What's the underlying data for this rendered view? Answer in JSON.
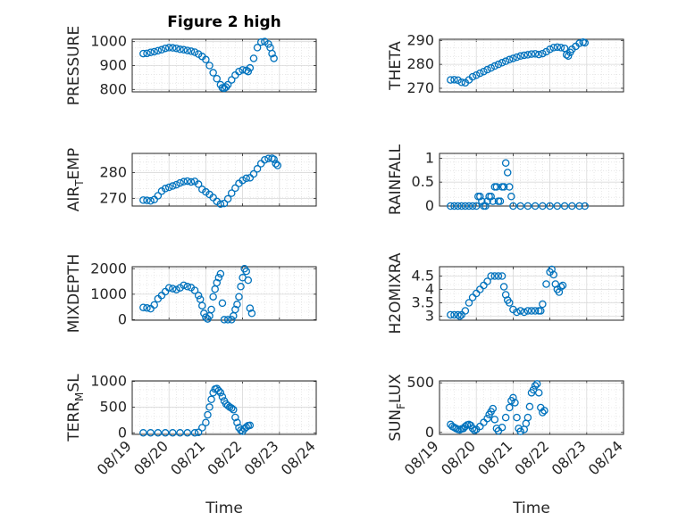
{
  "title": "Figure 2 high",
  "chart_data": [
    {
      "type": "scatter",
      "ylabel": "PRESSURE",
      "ylim": [
        790,
        1010
      ],
      "yticks": [
        800,
        900,
        1000
      ],
      "ytick_labels": [
        "800",
        "900",
        "1000"
      ],
      "xlim": [
        0,
        5
      ],
      "points": [
        [
          0.3,
          950
        ],
        [
          0.4,
          951
        ],
        [
          0.5,
          955
        ],
        [
          0.6,
          958
        ],
        [
          0.7,
          962
        ],
        [
          0.8,
          966
        ],
        [
          0.9,
          972
        ],
        [
          1.0,
          975
        ],
        [
          1.1,
          974
        ],
        [
          1.2,
          972
        ],
        [
          1.3,
          968
        ],
        [
          1.4,
          966
        ],
        [
          1.5,
          963
        ],
        [
          1.6,
          960
        ],
        [
          1.7,
          956
        ],
        [
          1.8,
          948
        ],
        [
          1.9,
          938
        ],
        [
          2.0,
          925
        ],
        [
          2.1,
          900
        ],
        [
          2.2,
          870
        ],
        [
          2.3,
          845
        ],
        [
          2.4,
          820
        ],
        [
          2.45,
          807
        ],
        [
          2.5,
          805
        ],
        [
          2.55,
          810
        ],
        [
          2.6,
          820
        ],
        [
          2.7,
          840
        ],
        [
          2.8,
          860
        ],
        [
          2.9,
          875
        ],
        [
          3.0,
          882
        ],
        [
          3.1,
          880
        ],
        [
          3.15,
          875
        ],
        [
          3.2,
          890
        ],
        [
          3.3,
          930
        ],
        [
          3.4,
          975
        ],
        [
          3.5,
          998
        ],
        [
          3.6,
          1000
        ],
        [
          3.7,
          990
        ],
        [
          3.75,
          975
        ],
        [
          3.8,
          950
        ],
        [
          3.85,
          930
        ]
      ],
      "grid": true
    },
    {
      "type": "scatter",
      "ylabel": "THETA",
      "ylim": [
        268.5,
        290.5
      ],
      "yticks": [
        270,
        280,
        290
      ],
      "ytick_labels": [
        "270",
        "280",
        "290"
      ],
      "xlim": [
        0,
        5
      ],
      "points": [
        [
          0.3,
          273.5
        ],
        [
          0.4,
          273.6
        ],
        [
          0.5,
          273.4
        ],
        [
          0.6,
          272.5
        ],
        [
          0.7,
          272.3
        ],
        [
          0.8,
          273.5
        ],
        [
          0.9,
          274.8
        ],
        [
          1.0,
          275.5
        ],
        [
          1.1,
          276.3
        ],
        [
          1.2,
          277.0
        ],
        [
          1.3,
          277.8
        ],
        [
          1.4,
          278.5
        ],
        [
          1.5,
          279.3
        ],
        [
          1.6,
          280.0
        ],
        [
          1.7,
          280.7
        ],
        [
          1.8,
          281.3
        ],
        [
          1.9,
          282.0
        ],
        [
          2.0,
          282.5
        ],
        [
          2.1,
          283.0
        ],
        [
          2.2,
          283.5
        ],
        [
          2.3,
          283.8
        ],
        [
          2.4,
          284.0
        ],
        [
          2.5,
          284.3
        ],
        [
          2.6,
          284.4
        ],
        [
          2.7,
          284.1
        ],
        [
          2.8,
          284.5
        ],
        [
          2.9,
          285.3
        ],
        [
          3.0,
          286.3
        ],
        [
          3.1,
          287.0
        ],
        [
          3.2,
          287.2
        ],
        [
          3.3,
          287.0
        ],
        [
          3.4,
          286.7
        ],
        [
          3.45,
          284.0
        ],
        [
          3.5,
          283.5
        ],
        [
          3.55,
          285.0
        ],
        [
          3.6,
          286.3
        ],
        [
          3.7,
          287.5
        ],
        [
          3.8,
          288.8
        ],
        [
          3.9,
          289.3
        ],
        [
          3.95,
          289.0
        ]
      ],
      "grid": true
    },
    {
      "type": "scatter",
      "ylabel": "AIR_TEMP",
      "ylim": [
        267,
        287.5
      ],
      "yticks": [
        270,
        280
      ],
      "ytick_labels": [
        "270",
        "280"
      ],
      "xlim": [
        0,
        5
      ],
      "points": [
        [
          0.3,
          269.3
        ],
        [
          0.4,
          269.2
        ],
        [
          0.5,
          269.0
        ],
        [
          0.6,
          269.5
        ],
        [
          0.7,
          271.0
        ],
        [
          0.8,
          272.8
        ],
        [
          0.9,
          273.8
        ],
        [
          1.0,
          274.3
        ],
        [
          1.1,
          274.8
        ],
        [
          1.2,
          275.3
        ],
        [
          1.3,
          276.0
        ],
        [
          1.4,
          276.5
        ],
        [
          1.5,
          276.7
        ],
        [
          1.6,
          276.4
        ],
        [
          1.7,
          276.6
        ],
        [
          1.8,
          275.5
        ],
        [
          1.9,
          273.5
        ],
        [
          2.0,
          272.5
        ],
        [
          2.1,
          271.5
        ],
        [
          2.2,
          270.3
        ],
        [
          2.3,
          268.8
        ],
        [
          2.4,
          267.8
        ],
        [
          2.5,
          268.0
        ],
        [
          2.6,
          269.8
        ],
        [
          2.7,
          272.0
        ],
        [
          2.8,
          274.0
        ],
        [
          2.9,
          275.8
        ],
        [
          3.0,
          277.0
        ],
        [
          3.1,
          277.8
        ],
        [
          3.2,
          278.0
        ],
        [
          3.3,
          279.5
        ],
        [
          3.4,
          281.5
        ],
        [
          3.5,
          283.5
        ],
        [
          3.6,
          285.0
        ],
        [
          3.7,
          285.5
        ],
        [
          3.8,
          285.6
        ],
        [
          3.85,
          285.2
        ],
        [
          3.9,
          283.5
        ],
        [
          3.95,
          282.8
        ]
      ],
      "grid": true
    },
    {
      "type": "scatter",
      "ylabel": "RAINFALL",
      "ylim": [
        0,
        1.1
      ],
      "yticks": [
        0,
        0.5,
        1
      ],
      "ytick_labels": [
        "0",
        "0.5",
        "1"
      ],
      "xlim": [
        0,
        5
      ],
      "points": [
        [
          0.3,
          0
        ],
        [
          0.4,
          0
        ],
        [
          0.5,
          0
        ],
        [
          0.6,
          0
        ],
        [
          0.7,
          0
        ],
        [
          0.8,
          0
        ],
        [
          0.9,
          0
        ],
        [
          1.0,
          0
        ],
        [
          1.05,
          0.2
        ],
        [
          1.1,
          0.2
        ],
        [
          1.15,
          0.1
        ],
        [
          1.2,
          0
        ],
        [
          1.25,
          0
        ],
        [
          1.3,
          0.1
        ],
        [
          1.35,
          0.2
        ],
        [
          1.4,
          0.2
        ],
        [
          1.45,
          0.1
        ],
        [
          1.5,
          0.4
        ],
        [
          1.55,
          0.4
        ],
        [
          1.6,
          0.1
        ],
        [
          1.65,
          0.1
        ],
        [
          1.7,
          0.4
        ],
        [
          1.75,
          0.4
        ],
        [
          1.8,
          0.9
        ],
        [
          1.85,
          0.7
        ],
        [
          1.9,
          0.4
        ],
        [
          1.95,
          0.2
        ],
        [
          2.0,
          0
        ],
        [
          2.2,
          0
        ],
        [
          2.4,
          0
        ],
        [
          2.6,
          0
        ],
        [
          2.8,
          0
        ],
        [
          3.0,
          0
        ],
        [
          3.2,
          0
        ],
        [
          3.4,
          0
        ],
        [
          3.6,
          0
        ],
        [
          3.8,
          0
        ],
        [
          3.95,
          0
        ]
      ],
      "grid": true
    },
    {
      "type": "scatter",
      "ylabel": "MIXDEPTH",
      "ylim": [
        -20,
        2080
      ],
      "yticks": [
        0,
        1000,
        2000
      ],
      "ytick_labels": [
        "0",
        "1000",
        "2000"
      ],
      "xlim": [
        0,
        5
      ],
      "points": [
        [
          0.3,
          480
        ],
        [
          0.4,
          460
        ],
        [
          0.5,
          430
        ],
        [
          0.6,
          580
        ],
        [
          0.7,
          820
        ],
        [
          0.8,
          950
        ],
        [
          0.9,
          1100
        ],
        [
          1.0,
          1250
        ],
        [
          1.1,
          1220
        ],
        [
          1.2,
          1180
        ],
        [
          1.3,
          1250
        ],
        [
          1.4,
          1350
        ],
        [
          1.5,
          1300
        ],
        [
          1.6,
          1260
        ],
        [
          1.7,
          1150
        ],
        [
          1.8,
          950
        ],
        [
          1.85,
          800
        ],
        [
          1.9,
          550
        ],
        [
          1.95,
          250
        ],
        [
          2.0,
          100
        ],
        [
          2.05,
          30
        ],
        [
          2.1,
          150
        ],
        [
          2.15,
          400
        ],
        [
          2.2,
          900
        ],
        [
          2.25,
          1200
        ],
        [
          2.3,
          1450
        ],
        [
          2.35,
          1650
        ],
        [
          2.4,
          1800
        ],
        [
          2.45,
          650
        ],
        [
          2.5,
          0
        ],
        [
          2.6,
          0
        ],
        [
          2.7,
          0
        ],
        [
          2.75,
          150
        ],
        [
          2.8,
          400
        ],
        [
          2.85,
          600
        ],
        [
          2.9,
          900
        ],
        [
          2.95,
          1300
        ],
        [
          3.0,
          1650
        ],
        [
          3.05,
          2000
        ],
        [
          3.1,
          1900
        ],
        [
          3.15,
          1550
        ],
        [
          3.2,
          450
        ],
        [
          3.25,
          250
        ]
      ],
      "grid": true
    },
    {
      "type": "scatter",
      "ylabel": "H2OMIXRA",
      "ylim": [
        2.85,
        4.85
      ],
      "yticks": [
        3,
        3.5,
        4,
        4.5
      ],
      "ytick_labels": [
        "3",
        "3.5",
        "4",
        "4.5"
      ],
      "xlim": [
        0,
        5
      ],
      "points": [
        [
          0.3,
          3.05
        ],
        [
          0.4,
          3.05
        ],
        [
          0.5,
          3.05
        ],
        [
          0.55,
          3.0
        ],
        [
          0.6,
          3.05
        ],
        [
          0.7,
          3.2
        ],
        [
          0.8,
          3.5
        ],
        [
          0.9,
          3.7
        ],
        [
          1.0,
          3.85
        ],
        [
          1.1,
          4.0
        ],
        [
          1.2,
          4.15
        ],
        [
          1.3,
          4.3
        ],
        [
          1.4,
          4.5
        ],
        [
          1.5,
          4.5
        ],
        [
          1.6,
          4.5
        ],
        [
          1.7,
          4.5
        ],
        [
          1.75,
          4.1
        ],
        [
          1.8,
          3.8
        ],
        [
          1.85,
          3.6
        ],
        [
          1.9,
          3.5
        ],
        [
          2.0,
          3.25
        ],
        [
          2.1,
          3.15
        ],
        [
          2.2,
          3.2
        ],
        [
          2.3,
          3.15
        ],
        [
          2.4,
          3.2
        ],
        [
          2.5,
          3.2
        ],
        [
          2.6,
          3.2
        ],
        [
          2.7,
          3.2
        ],
        [
          2.75,
          3.2
        ],
        [
          2.8,
          3.45
        ],
        [
          2.9,
          4.2
        ],
        [
          3.0,
          4.65
        ],
        [
          3.05,
          4.75
        ],
        [
          3.1,
          4.55
        ],
        [
          3.15,
          4.2
        ],
        [
          3.2,
          4.0
        ],
        [
          3.25,
          3.9
        ],
        [
          3.3,
          4.1
        ],
        [
          3.35,
          4.15
        ]
      ],
      "grid": true
    },
    {
      "type": "scatter",
      "ylabel": "TERR_MSL",
      "ylim": [
        -30,
        1010
      ],
      "yticks": [
        0,
        500,
        1000
      ],
      "ytick_labels": [
        "0",
        "500",
        "1000"
      ],
      "xlim": [
        0,
        5
      ],
      "points": [
        [
          0.3,
          0
        ],
        [
          0.5,
          0
        ],
        [
          0.7,
          0
        ],
        [
          0.9,
          0
        ],
        [
          1.1,
          0
        ],
        [
          1.3,
          0
        ],
        [
          1.5,
          0
        ],
        [
          1.7,
          0
        ],
        [
          1.8,
          10
        ],
        [
          1.9,
          100
        ],
        [
          2.0,
          200
        ],
        [
          2.05,
          350
        ],
        [
          2.1,
          500
        ],
        [
          2.15,
          650
        ],
        [
          2.2,
          780
        ],
        [
          2.25,
          850
        ],
        [
          2.3,
          860
        ],
        [
          2.35,
          820
        ],
        [
          2.4,
          780
        ],
        [
          2.45,
          700
        ],
        [
          2.5,
          620
        ],
        [
          2.55,
          560
        ],
        [
          2.6,
          530
        ],
        [
          2.65,
          500
        ],
        [
          2.7,
          480
        ],
        [
          2.75,
          450
        ],
        [
          2.8,
          300
        ],
        [
          2.85,
          200
        ],
        [
          2.9,
          100
        ],
        [
          2.95,
          50
        ],
        [
          3.0,
          30
        ],
        [
          3.05,
          80
        ],
        [
          3.1,
          110
        ],
        [
          3.15,
          140
        ],
        [
          3.2,
          145
        ]
      ],
      "grid": true
    },
    {
      "type": "scatter",
      "ylabel": "SUN_FLUX",
      "ylim": [
        -20,
        520
      ],
      "yticks": [
        0,
        500
      ],
      "ytick_labels": [
        "0",
        "500"
      ],
      "xlim": [
        0,
        5
      ],
      "points": [
        [
          0.3,
          80
        ],
        [
          0.35,
          60
        ],
        [
          0.4,
          50
        ],
        [
          0.45,
          40
        ],
        [
          0.5,
          30
        ],
        [
          0.55,
          25
        ],
        [
          0.6,
          35
        ],
        [
          0.65,
          40
        ],
        [
          0.7,
          60
        ],
        [
          0.75,
          75
        ],
        [
          0.8,
          80
        ],
        [
          0.85,
          70
        ],
        [
          0.9,
          40
        ],
        [
          0.95,
          20
        ],
        [
          1.0,
          30
        ],
        [
          1.1,
          60
        ],
        [
          1.2,
          100
        ],
        [
          1.3,
          140
        ],
        [
          1.35,
          180
        ],
        [
          1.4,
          210
        ],
        [
          1.45,
          240
        ],
        [
          1.5,
          130
        ],
        [
          1.55,
          40
        ],
        [
          1.6,
          15
        ],
        [
          1.7,
          50
        ],
        [
          1.8,
          150
        ],
        [
          1.9,
          250
        ],
        [
          1.95,
          320
        ],
        [
          2.0,
          350
        ],
        [
          2.05,
          300
        ],
        [
          2.1,
          150
        ],
        [
          2.15,
          40
        ],
        [
          2.2,
          10
        ],
        [
          2.3,
          30
        ],
        [
          2.35,
          90
        ],
        [
          2.4,
          150
        ],
        [
          2.45,
          260
        ],
        [
          2.5,
          400
        ],
        [
          2.55,
          430
        ],
        [
          2.6,
          470
        ],
        [
          2.65,
          490
        ],
        [
          2.7,
          400
        ],
        [
          2.75,
          250
        ],
        [
          2.8,
          200
        ],
        [
          2.85,
          220
        ]
      ],
      "grid": true
    }
  ],
  "x_tick_labels": [
    "08/19",
    "08/20",
    "08/21",
    "08/22",
    "08/23",
    "08/24"
  ],
  "xlabel": "Time",
  "colors": {
    "marker": "#0072BD",
    "axis": "#262626",
    "grid": "#d9d9d9"
  }
}
